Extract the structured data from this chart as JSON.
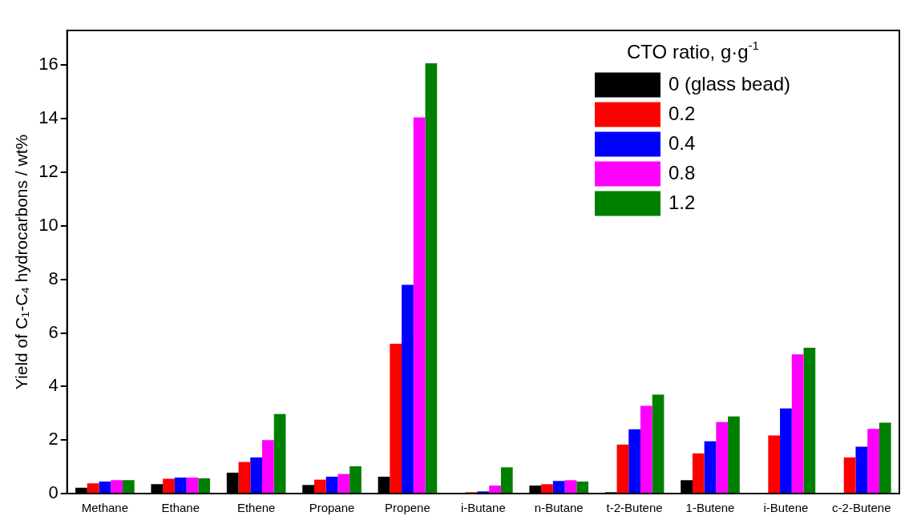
{
  "chart_data": {
    "type": "bar",
    "ylabel": "Yield of C₁-C₄ hydrocarbons / wt%",
    "legend_title": "CTO ratio, g·g$^{-1}$",
    "categories": [
      "Methane",
      "Ethane",
      "Ethene",
      "Propane",
      "Propene",
      "i-Butane",
      "n-Butane",
      "t-2-Butene",
      "1-Butene",
      "i-Butene",
      "c-2-Butene"
    ],
    "series": [
      {
        "name": "0 (glass bead)",
        "color": "#000000",
        "values": [
          0.22,
          0.35,
          0.78,
          0.32,
          0.63,
          0.01,
          0.3,
          0.05,
          0.5,
          0.02,
          0.02
        ]
      },
      {
        "name": "0.2",
        "color": "#ff0000",
        "values": [
          0.38,
          0.55,
          1.18,
          0.52,
          5.6,
          0.05,
          0.35,
          1.83,
          1.5,
          2.17,
          1.35
        ]
      },
      {
        "name": "0.4",
        "color": "#0000ff",
        "values": [
          0.45,
          0.6,
          1.35,
          0.63,
          7.8,
          0.08,
          0.47,
          2.4,
          1.95,
          3.18,
          1.75
        ]
      },
      {
        "name": "0.8",
        "color": "#ff00ff",
        "values": [
          0.5,
          0.6,
          2.0,
          0.73,
          14.05,
          0.3,
          0.5,
          3.28,
          2.67,
          5.2,
          2.42
        ]
      },
      {
        "name": "1.2",
        "color": "#008000",
        "values": [
          0.5,
          0.57,
          2.97,
          1.02,
          16.07,
          0.98,
          0.45,
          3.7,
          2.88,
          5.45,
          2.65
        ]
      }
    ],
    "ylim": [
      0,
      17.3
    ],
    "yticks": [
      0,
      2,
      4,
      6,
      8,
      10,
      12,
      14,
      16
    ],
    "grid": false,
    "legend": "top right"
  }
}
